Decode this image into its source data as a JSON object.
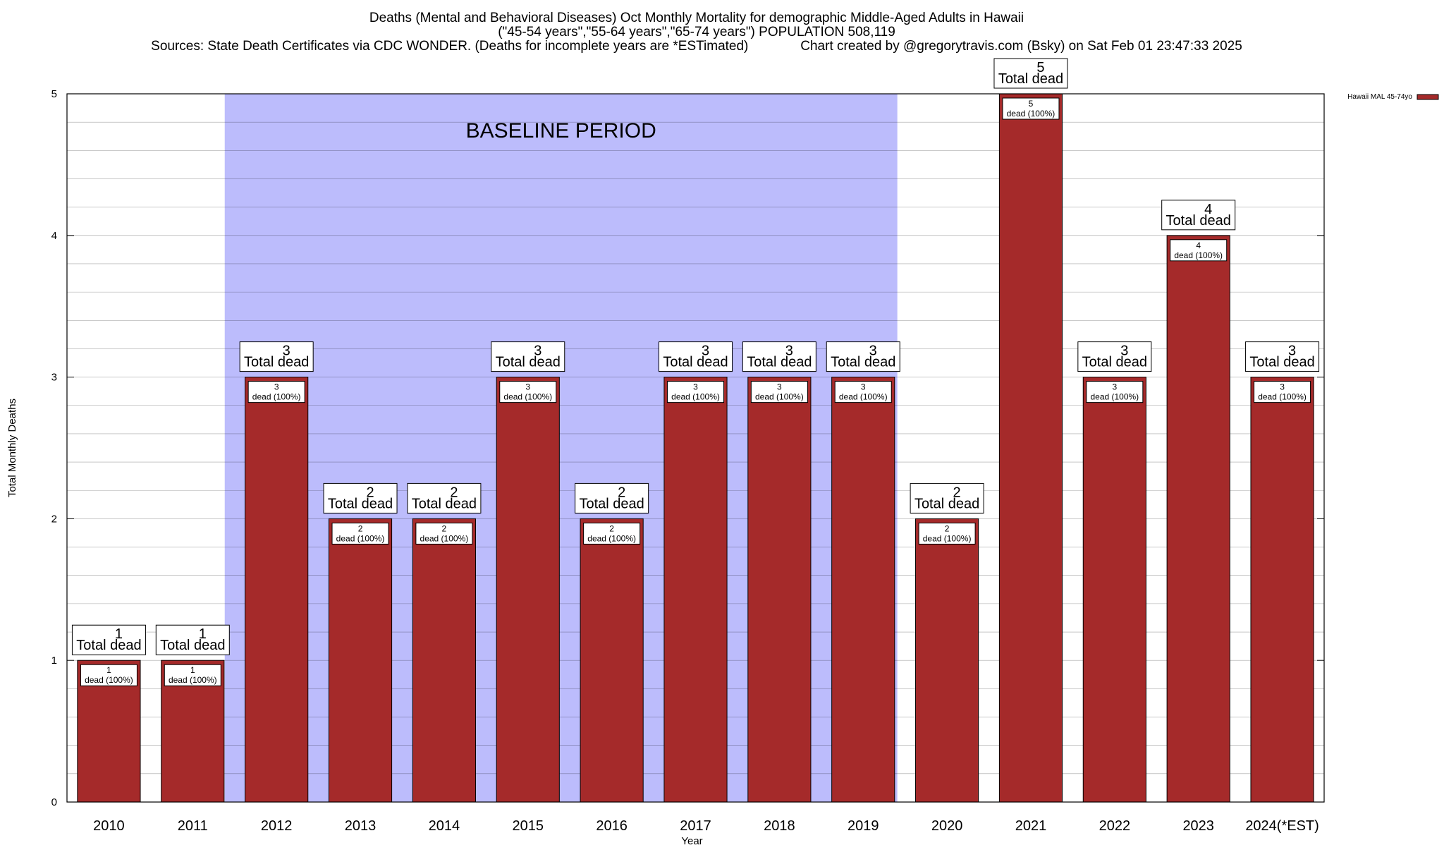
{
  "chart_data": {
    "type": "bar",
    "title": [
      "Deaths (Mental and Behavioral Diseases) Oct Monthly Mortality for demographic Middle-Aged Adults in Hawaii",
      "(\"45-54 years\",\"55-64 years\",\"65-74 years\") POPULATION 508,119",
      "Sources: State Death Certificates via CDC WONDER. (Deaths for incomplete years are *ESTimated)              Chart created by @gregorytravis.com (Bsky) on Sat Feb 01 23:47:33 2025"
    ],
    "xlabel": "Year",
    "ylabel": "Total Monthly Deaths",
    "ylim": [
      0,
      5
    ],
    "yticks": [
      0,
      1,
      2,
      3,
      4,
      5
    ],
    "grid": true,
    "categories": [
      "2010",
      "2011",
      "2012",
      "2013",
      "2014",
      "2015",
      "2016",
      "2017",
      "2018",
      "2019",
      "2020",
      "2021",
      "2022",
      "2023",
      "2024(*EST)"
    ],
    "series": [
      {
        "name": "Hawaii MAL 45-74yo",
        "values": [
          1,
          1,
          3,
          2,
          2,
          3,
          2,
          3,
          3,
          3,
          2,
          5,
          3,
          4,
          3
        ],
        "color": "#a52a2a"
      }
    ],
    "total_label_suffix": "Total dead",
    "bar_label_suffix": "dead (100%)",
    "baseline": {
      "label": "BASELINE PERIOD",
      "from": "2012",
      "to": "2019",
      "color": "#bcbcfc"
    },
    "legend": {
      "position": "top-right",
      "label": "Hawaii MAL 45-74yo"
    }
  }
}
